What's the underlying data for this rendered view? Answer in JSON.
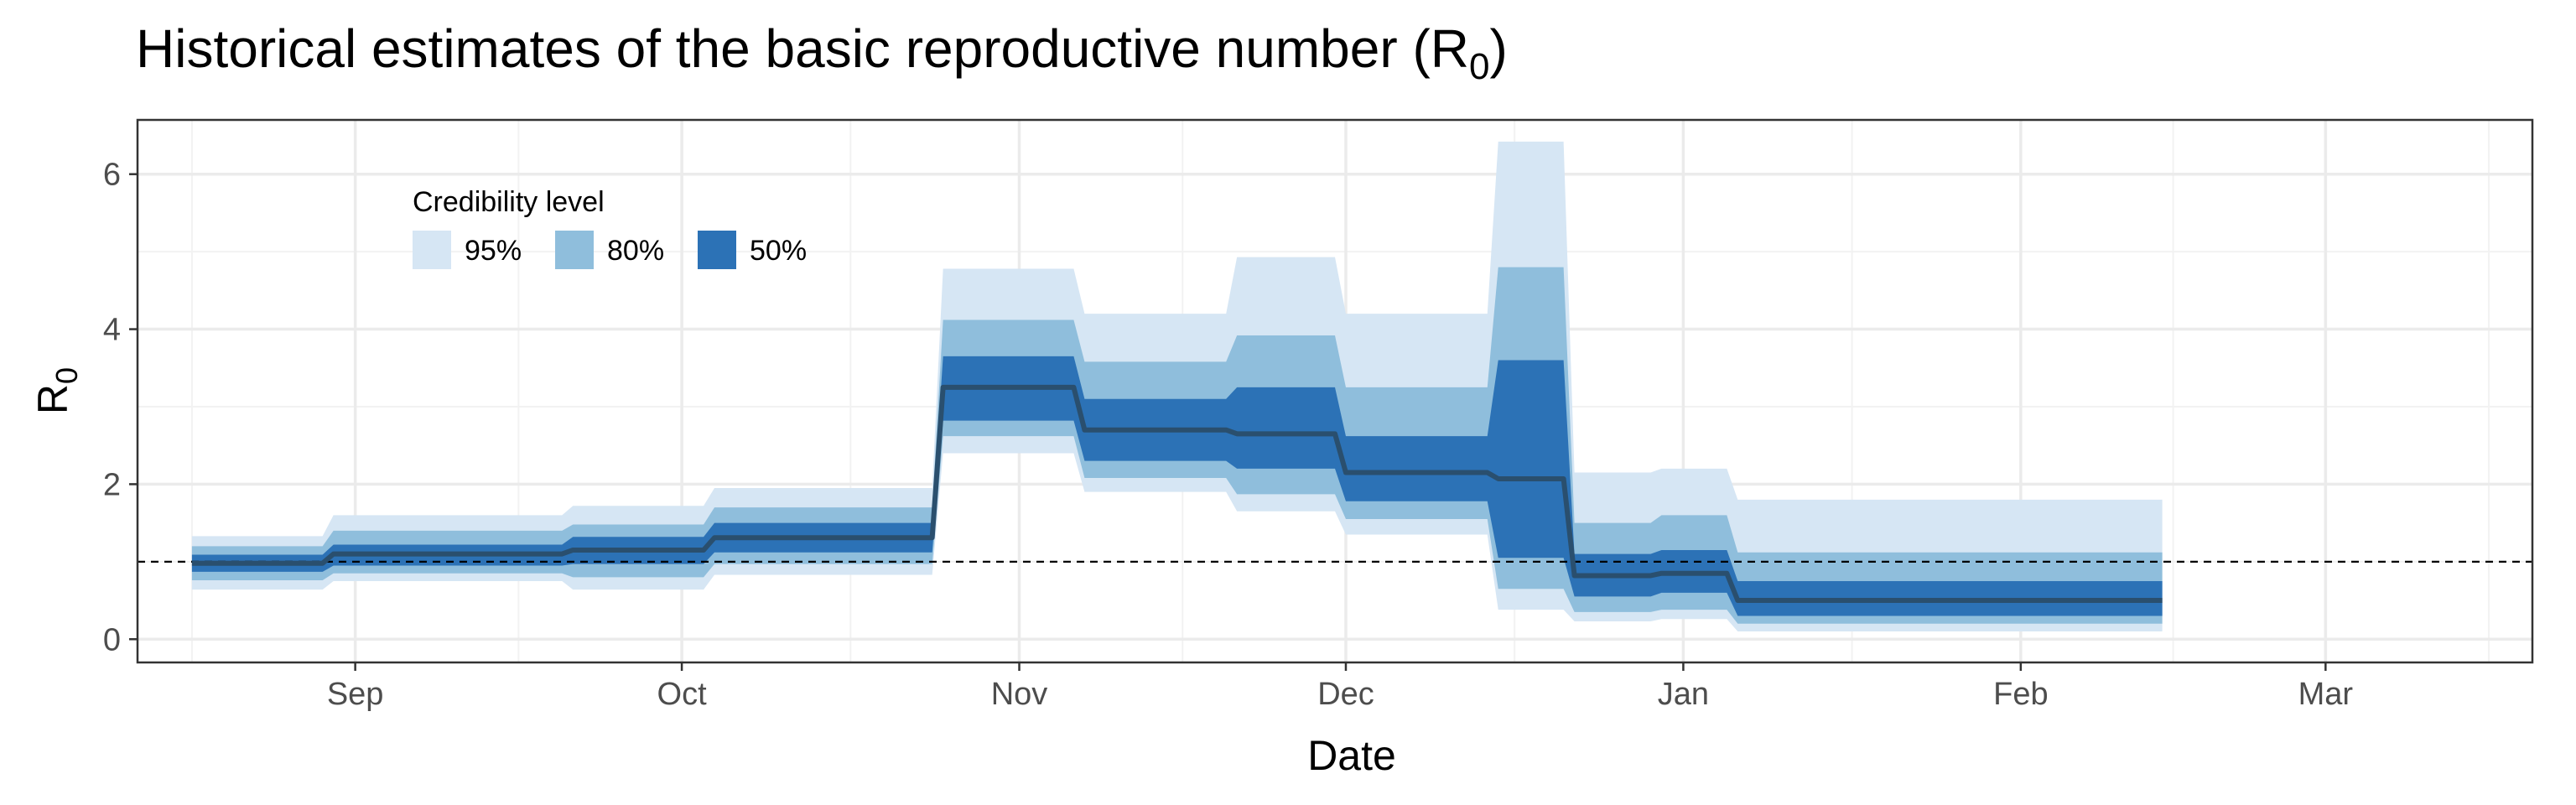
{
  "chart_data": {
    "type": "area",
    "title": "Historical estimates of the basic reproductive number (R",
    "title_subscript": "0",
    "title_suffix": ")",
    "xlabel": "Date",
    "ylabel": "R",
    "ylabel_subscript": "0",
    "x_axis": "date",
    "xlim": [
      "2020-08-12",
      "2021-03-20"
    ],
    "ylim": [
      -0.3,
      6.7
    ],
    "x_ticks": [
      {
        "date": "2020-09-01",
        "label": "Sep"
      },
      {
        "date": "2020-10-01",
        "label": "Oct"
      },
      {
        "date": "2020-11-01",
        "label": "Nov"
      },
      {
        "date": "2020-12-01",
        "label": "Dec"
      },
      {
        "date": "2021-01-01",
        "label": "Jan"
      },
      {
        "date": "2021-02-01",
        "label": "Feb"
      },
      {
        "date": "2021-03-01",
        "label": "Mar"
      }
    ],
    "y_ticks": [
      0,
      2,
      4,
      6
    ],
    "grid": true,
    "reference_line": {
      "y": 1,
      "style": "dashed"
    },
    "legend": {
      "title": "Credibility level",
      "position": "top-left",
      "items": [
        {
          "label": "95%",
          "color": "#d6e6f4"
        },
        {
          "label": "80%",
          "color": "#8fbedc"
        },
        {
          "label": "50%",
          "color": "#2c72b6"
        }
      ]
    },
    "median_color": "#2a4f6e",
    "series": [
      {
        "date": "2020-08-17",
        "median": 0.98,
        "lo95": 0.64,
        "hi95": 1.33,
        "lo80": 0.76,
        "hi80": 1.2,
        "lo50": 0.87,
        "hi50": 1.09
      },
      {
        "date": "2020-08-29",
        "median": 0.98,
        "lo95": 0.64,
        "hi95": 1.33,
        "lo80": 0.76,
        "hi80": 1.2,
        "lo50": 0.87,
        "hi50": 1.09
      },
      {
        "date": "2020-08-30",
        "median": 1.1,
        "lo95": 0.75,
        "hi95": 1.6,
        "lo80": 0.85,
        "hi80": 1.4,
        "lo50": 0.95,
        "hi50": 1.22
      },
      {
        "date": "2020-09-20",
        "median": 1.1,
        "lo95": 0.75,
        "hi95": 1.6,
        "lo80": 0.85,
        "hi80": 1.4,
        "lo50": 0.95,
        "hi50": 1.22
      },
      {
        "date": "2020-09-21",
        "median": 1.15,
        "lo95": 0.64,
        "hi95": 1.72,
        "lo80": 0.8,
        "hi80": 1.48,
        "lo50": 0.97,
        "hi50": 1.32
      },
      {
        "date": "2020-10-03",
        "median": 1.15,
        "lo95": 0.64,
        "hi95": 1.72,
        "lo80": 0.8,
        "hi80": 1.48,
        "lo50": 0.97,
        "hi50": 1.32
      },
      {
        "date": "2020-10-04",
        "median": 1.31,
        "lo95": 0.83,
        "hi95": 1.95,
        "lo80": 0.97,
        "hi80": 1.7,
        "lo50": 1.12,
        "hi50": 1.5
      },
      {
        "date": "2020-10-24",
        "median": 1.31,
        "lo95": 0.83,
        "hi95": 1.95,
        "lo80": 0.97,
        "hi80": 1.7,
        "lo50": 1.12,
        "hi50": 1.5
      },
      {
        "date": "2020-10-25",
        "median": 3.25,
        "lo95": 2.4,
        "hi95": 4.78,
        "lo80": 2.62,
        "hi80": 4.12,
        "lo50": 2.82,
        "hi50": 3.65
      },
      {
        "date": "2020-11-06",
        "median": 3.25,
        "lo95": 2.4,
        "hi95": 4.78,
        "lo80": 2.62,
        "hi80": 4.12,
        "lo50": 2.82,
        "hi50": 3.65
      },
      {
        "date": "2020-11-07",
        "median": 2.7,
        "lo95": 1.9,
        "hi95": 4.2,
        "lo80": 2.08,
        "hi80": 3.58,
        "lo50": 2.3,
        "hi50": 3.1
      },
      {
        "date": "2020-11-20",
        "median": 2.7,
        "lo95": 1.9,
        "hi95": 4.2,
        "lo80": 2.08,
        "hi80": 3.58,
        "lo50": 2.3,
        "hi50": 3.1
      },
      {
        "date": "2020-11-21",
        "median": 2.65,
        "lo95": 1.65,
        "hi95": 4.93,
        "lo80": 1.87,
        "hi80": 3.92,
        "lo50": 2.2,
        "hi50": 3.25
      },
      {
        "date": "2020-11-30",
        "median": 2.65,
        "lo95": 1.65,
        "hi95": 4.93,
        "lo80": 1.87,
        "hi80": 3.92,
        "lo50": 2.2,
        "hi50": 3.25
      },
      {
        "date": "2020-12-01",
        "median": 2.15,
        "lo95": 1.35,
        "hi95": 4.2,
        "lo80": 1.55,
        "hi80": 3.25,
        "lo50": 1.78,
        "hi50": 2.62
      },
      {
        "date": "2020-12-14",
        "median": 2.15,
        "lo95": 1.35,
        "hi95": 4.2,
        "lo80": 1.55,
        "hi80": 3.25,
        "lo50": 1.78,
        "hi50": 2.62
      },
      {
        "date": "2020-12-15",
        "median": 2.07,
        "lo95": 0.38,
        "hi95": 6.42,
        "lo80": 0.65,
        "hi80": 4.8,
        "lo50": 1.05,
        "hi50": 3.6
      },
      {
        "date": "2020-12-21",
        "median": 2.07,
        "lo95": 0.38,
        "hi95": 6.42,
        "lo80": 0.65,
        "hi80": 4.8,
        "lo50": 1.05,
        "hi50": 3.6
      },
      {
        "date": "2020-12-22",
        "median": 0.82,
        "lo95": 0.23,
        "hi95": 2.15,
        "lo80": 0.35,
        "hi80": 1.5,
        "lo50": 0.55,
        "hi50": 1.1
      },
      {
        "date": "2020-12-29",
        "median": 0.82,
        "lo95": 0.23,
        "hi95": 2.15,
        "lo80": 0.35,
        "hi80": 1.5,
        "lo50": 0.55,
        "hi50": 1.1
      },
      {
        "date": "2020-12-30",
        "median": 0.85,
        "lo95": 0.26,
        "hi95": 2.2,
        "lo80": 0.38,
        "hi80": 1.6,
        "lo50": 0.6,
        "hi50": 1.15
      },
      {
        "date": "2021-01-05",
        "median": 0.85,
        "lo95": 0.26,
        "hi95": 2.2,
        "lo80": 0.38,
        "hi80": 1.6,
        "lo50": 0.6,
        "hi50": 1.15
      },
      {
        "date": "2021-01-06",
        "median": 0.5,
        "lo95": 0.1,
        "hi95": 1.8,
        "lo80": 0.2,
        "hi80": 1.12,
        "lo50": 0.3,
        "hi50": 0.75
      },
      {
        "date": "2021-02-14",
        "median": 0.5,
        "lo95": 0.1,
        "hi95": 1.8,
        "lo80": 0.2,
        "hi80": 1.12,
        "lo50": 0.3,
        "hi50": 0.75
      }
    ]
  }
}
